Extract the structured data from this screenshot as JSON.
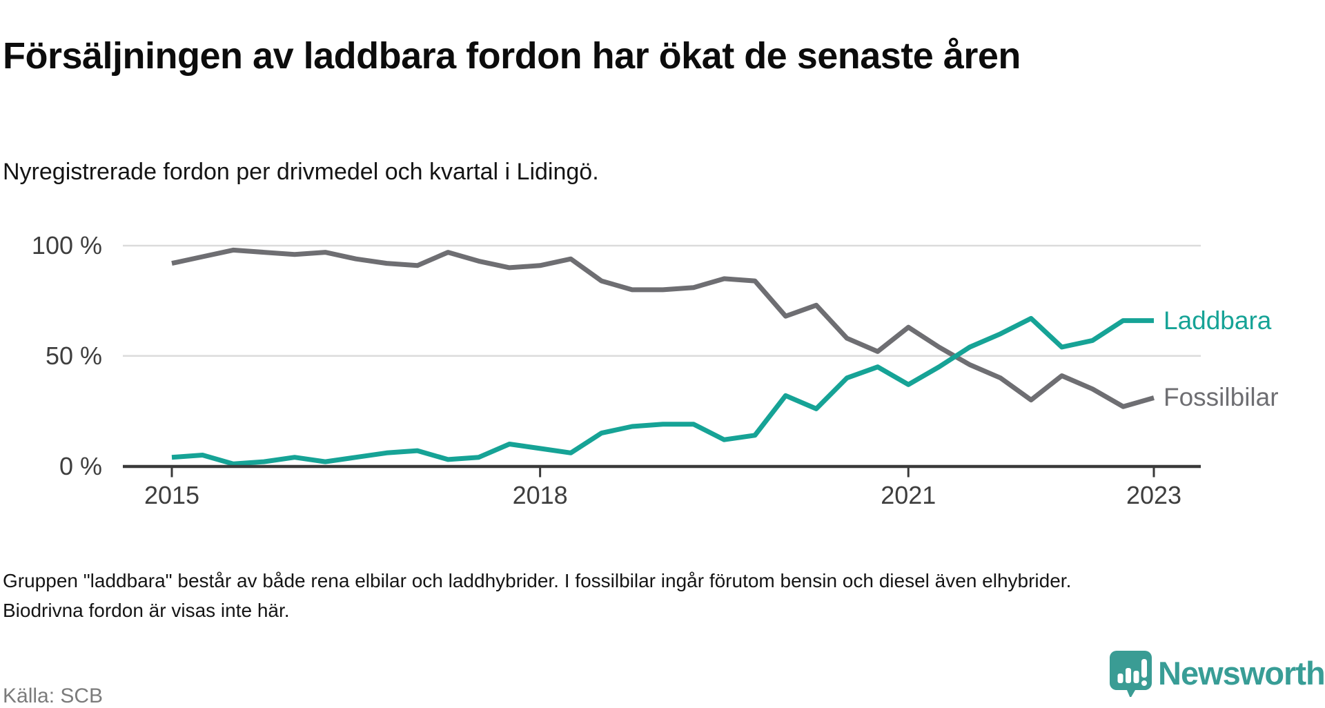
{
  "header": {
    "title": "Försäljningen av laddbara fordon har ökat de senaste åren",
    "subtitle": "Nyregistrerade fordon per drivmedel och kvartal i Lidingö."
  },
  "chart_data": {
    "type": "line",
    "title": "Försäljningen av laddbara fordon har ökat de senaste åren",
    "subtitle": "Nyregistrerade fordon per drivmedel och kvartal i Lidingö.",
    "unit": "%",
    "ylim": [
      0,
      100
    ],
    "grid": "horizontal",
    "legend_position": "end-of-line-labels",
    "categories": [
      "2015 Q1",
      "2015 Q2",
      "2015 Q3",
      "2015 Q4",
      "2016 Q1",
      "2016 Q2",
      "2016 Q3",
      "2016 Q4",
      "2017 Q1",
      "2017 Q2",
      "2017 Q3",
      "2017 Q4",
      "2018 Q1",
      "2018 Q2",
      "2018 Q3",
      "2018 Q4",
      "2019 Q1",
      "2019 Q2",
      "2019 Q3",
      "2019 Q4",
      "2020 Q1",
      "2020 Q2",
      "2020 Q3",
      "2020 Q4",
      "2021 Q1",
      "2021 Q2",
      "2021 Q3",
      "2021 Q4",
      "2022 Q1",
      "2022 Q2",
      "2022 Q3",
      "2022 Q4",
      "2023 Q1"
    ],
    "series": [
      {
        "name": "Laddbara",
        "color": "#16a396",
        "values": [
          4,
          5,
          1,
          2,
          4,
          2,
          4,
          6,
          7,
          3,
          4,
          10,
          8,
          6,
          15,
          18,
          19,
          19,
          12,
          14,
          32,
          26,
          40,
          45,
          37,
          45,
          54,
          60,
          67,
          54,
          57,
          66,
          66
        ]
      },
      {
        "name": "Fossilbilar",
        "color": "#6e6e72",
        "values": [
          92,
          95,
          98,
          97,
          96,
          97,
          94,
          92,
          91,
          97,
          93,
          90,
          91,
          94,
          84,
          80,
          80,
          81,
          85,
          84,
          68,
          73,
          58,
          52,
          63,
          54,
          46,
          40,
          30,
          41,
          35,
          27,
          31
        ]
      }
    ],
    "x_ticks": [
      {
        "label": "2015",
        "index": 0
      },
      {
        "label": "2018",
        "index": 12
      },
      {
        "label": "2021",
        "index": 24
      },
      {
        "label": "2023",
        "index": 32
      }
    ],
    "y_ticks": [
      {
        "label": "0 %",
        "value": 0
      },
      {
        "label": "50 %",
        "value": 50
      },
      {
        "label": "100 %",
        "value": 100
      }
    ]
  },
  "footer": {
    "note": "Gruppen \"laddbara\" består av både rena elbilar och laddhybrider. I fossilbilar ingår förutom bensin och diesel även elhybrider. Biodrivna fordon är visas inte här.",
    "source": "Källa: SCB",
    "brand": "Newsworthy",
    "brand_color": "#389d96"
  }
}
